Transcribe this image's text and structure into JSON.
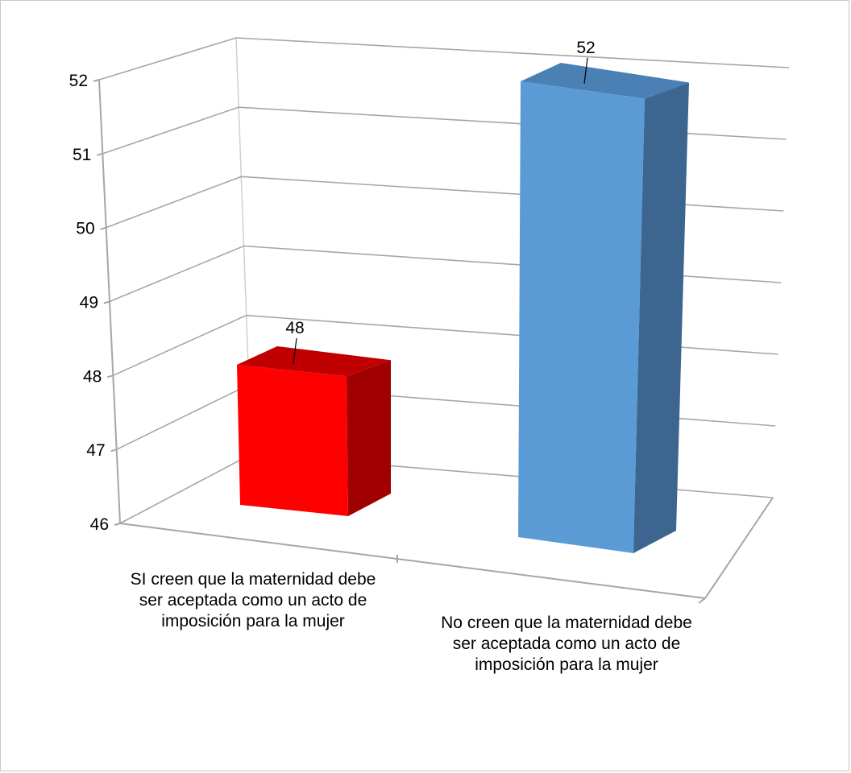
{
  "chart_data": {
    "type": "bar",
    "categories": [
      "SI creen que la maternidad debe ser aceptada como un acto de imposición para la mujer",
      "No creen que la maternidad debe ser aceptada como un acto de imposición para la mujer"
    ],
    "values": [
      48,
      52
    ],
    "data_labels": [
      "48",
      "52"
    ],
    "title": "",
    "xlabel": "",
    "ylabel": "",
    "ylim": [
      46,
      52
    ],
    "yticks": [
      "46",
      "47",
      "48",
      "49",
      "50",
      "51",
      "52"
    ],
    "grid": true,
    "legend": "none",
    "colors": {
      "bar_1": {
        "front": "#ff0000",
        "top": "#c00000",
        "side": "#a00000"
      },
      "bar_2": {
        "front": "#5b9bd5",
        "top": "#4a80b4",
        "side": "#3c6690"
      },
      "gridline": "#a6a6a6"
    }
  }
}
